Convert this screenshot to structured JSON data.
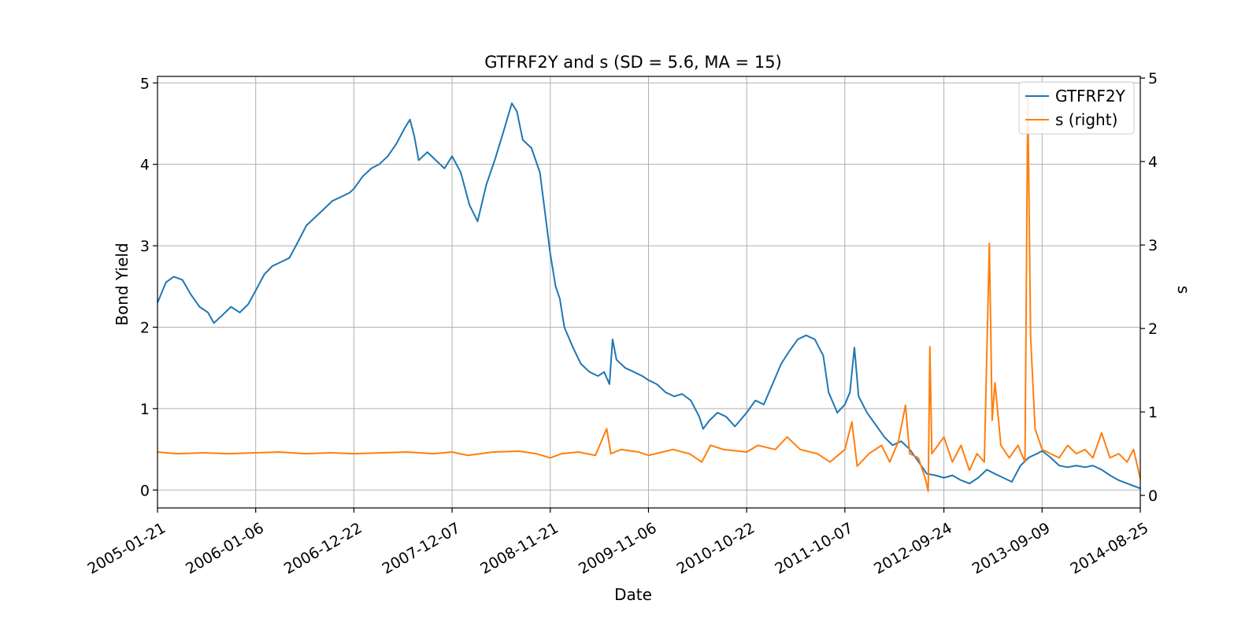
{
  "chart_data": {
    "type": "line",
    "title": "GTFRF2Y and s (SD = 5.6, MA = 15)",
    "xlabel": "Date",
    "ylabel": "Bond Yield",
    "ylabel_right": "s",
    "x_ticks": [
      "2005-01-21",
      "2006-01-06",
      "2006-12-22",
      "2007-12-07",
      "2008-11-21",
      "2009-11-06",
      "2010-10-22",
      "2011-10-07",
      "2012-09-24",
      "2013-09-09",
      "2014-08-25"
    ],
    "xlim": [
      "2005-01-21",
      "2014-08-25"
    ],
    "ylim_left": [
      -0.22,
      5.08
    ],
    "ylim_right": [
      -0.15,
      5.02
    ],
    "yticks_left": [
      0,
      1,
      2,
      3,
      4,
      5
    ],
    "yticks_right": [
      0,
      1,
      2,
      3,
      4,
      5
    ],
    "grid": true,
    "legend_position": "top-right",
    "colors": {
      "GTFRF2Y": "#1f77b4",
      "s": "#ff7f0e",
      "grid": "#b0b0b0"
    },
    "series": [
      {
        "name": "GTFRF2Y",
        "axis": "left",
        "points": [
          [
            "2005-01-21",
            2.3
          ],
          [
            "2005-02-20",
            2.55
          ],
          [
            "2005-03-20",
            2.62
          ],
          [
            "2005-04-20",
            2.58
          ],
          [
            "2005-05-20",
            2.4
          ],
          [
            "2005-06-20",
            2.25
          ],
          [
            "2005-07-20",
            2.18
          ],
          [
            "2005-08-10",
            2.05
          ],
          [
            "2005-09-10",
            2.15
          ],
          [
            "2005-10-10",
            2.25
          ],
          [
            "2005-11-10",
            2.18
          ],
          [
            "2005-12-10",
            2.28
          ],
          [
            "2006-01-06",
            2.45
          ],
          [
            "2006-02-06",
            2.65
          ],
          [
            "2006-03-06",
            2.75
          ],
          [
            "2006-04-06",
            2.8
          ],
          [
            "2006-05-06",
            2.85
          ],
          [
            "2006-06-06",
            3.05
          ],
          [
            "2006-07-06",
            3.25
          ],
          [
            "2006-08-06",
            3.35
          ],
          [
            "2006-09-06",
            3.45
          ],
          [
            "2006-10-06",
            3.55
          ],
          [
            "2006-11-06",
            3.6
          ],
          [
            "2006-12-06",
            3.65
          ],
          [
            "2006-12-22",
            3.7
          ],
          [
            "2007-01-22",
            3.85
          ],
          [
            "2007-02-22",
            3.95
          ],
          [
            "2007-03-22",
            4.0
          ],
          [
            "2007-04-22",
            4.1
          ],
          [
            "2007-05-22",
            4.25
          ],
          [
            "2007-06-22",
            4.45
          ],
          [
            "2007-07-10",
            4.55
          ],
          [
            "2007-07-25",
            4.35
          ],
          [
            "2007-08-10",
            4.05
          ],
          [
            "2007-09-10",
            4.15
          ],
          [
            "2007-10-10",
            4.05
          ],
          [
            "2007-11-10",
            3.95
          ],
          [
            "2007-12-07",
            4.1
          ],
          [
            "2008-01-07",
            3.9
          ],
          [
            "2008-02-07",
            3.5
          ],
          [
            "2008-03-07",
            3.3
          ],
          [
            "2008-04-07",
            3.75
          ],
          [
            "2008-05-07",
            4.05
          ],
          [
            "2008-06-07",
            4.4
          ],
          [
            "2008-07-07",
            4.75
          ],
          [
            "2008-07-25",
            4.65
          ],
          [
            "2008-08-15",
            4.3
          ],
          [
            "2008-09-15",
            4.2
          ],
          [
            "2008-10-15",
            3.9
          ],
          [
            "2008-11-21",
            2.9
          ],
          [
            "2008-12-10",
            2.5
          ],
          [
            "2008-12-25",
            2.35
          ],
          [
            "2009-01-10",
            2.0
          ],
          [
            "2009-02-10",
            1.75
          ],
          [
            "2009-03-10",
            1.55
          ],
          [
            "2009-04-10",
            1.45
          ],
          [
            "2009-05-10",
            1.4
          ],
          [
            "2009-06-01",
            1.45
          ],
          [
            "2009-06-20",
            1.3
          ],
          [
            "2009-07-01",
            1.85
          ],
          [
            "2009-07-15",
            1.6
          ],
          [
            "2009-08-15",
            1.5
          ],
          [
            "2009-09-15",
            1.45
          ],
          [
            "2009-10-15",
            1.4
          ],
          [
            "2009-11-06",
            1.35
          ],
          [
            "2009-12-06",
            1.3
          ],
          [
            "2010-01-06",
            1.2
          ],
          [
            "2010-02-06",
            1.15
          ],
          [
            "2010-03-06",
            1.18
          ],
          [
            "2010-04-06",
            1.1
          ],
          [
            "2010-05-06",
            0.9
          ],
          [
            "2010-05-20",
            0.75
          ],
          [
            "2010-06-10",
            0.85
          ],
          [
            "2010-07-10",
            0.95
          ],
          [
            "2010-08-10",
            0.9
          ],
          [
            "2010-09-10",
            0.78
          ],
          [
            "2010-10-22",
            0.95
          ],
          [
            "2010-11-22",
            1.1
          ],
          [
            "2010-12-22",
            1.05
          ],
          [
            "2011-01-22",
            1.3
          ],
          [
            "2011-02-22",
            1.55
          ],
          [
            "2011-03-22",
            1.7
          ],
          [
            "2011-04-22",
            1.85
          ],
          [
            "2011-05-22",
            1.9
          ],
          [
            "2011-06-22",
            1.85
          ],
          [
            "2011-07-22",
            1.65
          ],
          [
            "2011-08-10",
            1.2
          ],
          [
            "2011-09-10",
            0.95
          ],
          [
            "2011-10-07",
            1.05
          ],
          [
            "2011-10-25",
            1.2
          ],
          [
            "2011-11-10",
            1.75
          ],
          [
            "2011-11-25",
            1.15
          ],
          [
            "2011-12-25",
            0.95
          ],
          [
            "2012-01-25",
            0.8
          ],
          [
            "2012-02-25",
            0.65
          ],
          [
            "2012-03-25",
            0.55
          ],
          [
            "2012-04-25",
            0.6
          ],
          [
            "2012-05-25",
            0.5
          ],
          [
            "2012-06-25",
            0.35
          ],
          [
            "2012-07-25",
            0.2
          ],
          [
            "2012-08-25",
            0.18
          ],
          [
            "2012-09-24",
            0.15
          ],
          [
            "2012-10-24",
            0.18
          ],
          [
            "2012-11-24",
            0.12
          ],
          [
            "2012-12-24",
            0.08
          ],
          [
            "2013-01-24",
            0.15
          ],
          [
            "2013-02-24",
            0.25
          ],
          [
            "2013-03-24",
            0.2
          ],
          [
            "2013-04-24",
            0.15
          ],
          [
            "2013-05-24",
            0.1
          ],
          [
            "2013-06-24",
            0.3
          ],
          [
            "2013-07-24",
            0.4
          ],
          [
            "2013-08-24",
            0.45
          ],
          [
            "2013-09-09",
            0.48
          ],
          [
            "2013-10-09",
            0.4
          ],
          [
            "2013-11-09",
            0.3
          ],
          [
            "2013-12-09",
            0.28
          ],
          [
            "2014-01-09",
            0.3
          ],
          [
            "2014-02-09",
            0.28
          ],
          [
            "2014-03-09",
            0.3
          ],
          [
            "2014-04-09",
            0.25
          ],
          [
            "2014-05-09",
            0.18
          ],
          [
            "2014-06-09",
            0.12
          ],
          [
            "2014-07-09",
            0.08
          ],
          [
            "2014-08-25",
            0.02
          ]
        ]
      },
      {
        "name": "s (right)",
        "axis": "right",
        "points": [
          [
            "2005-01-21",
            0.52
          ],
          [
            "2005-04-01",
            0.5
          ],
          [
            "2005-07-01",
            0.51
          ],
          [
            "2005-10-01",
            0.5
          ],
          [
            "2006-01-06",
            0.51
          ],
          [
            "2006-04-01",
            0.52
          ],
          [
            "2006-07-01",
            0.5
          ],
          [
            "2006-10-01",
            0.51
          ],
          [
            "2006-12-22",
            0.5
          ],
          [
            "2007-04-01",
            0.51
          ],
          [
            "2007-07-01",
            0.52
          ],
          [
            "2007-10-01",
            0.5
          ],
          [
            "2007-12-07",
            0.52
          ],
          [
            "2008-02-01",
            0.48
          ],
          [
            "2008-05-01",
            0.52
          ],
          [
            "2008-08-01",
            0.53
          ],
          [
            "2008-10-01",
            0.5
          ],
          [
            "2008-11-21",
            0.45
          ],
          [
            "2009-01-01",
            0.5
          ],
          [
            "2009-03-01",
            0.52
          ],
          [
            "2009-05-01",
            0.48
          ],
          [
            "2009-06-10",
            0.8
          ],
          [
            "2009-06-25",
            0.5
          ],
          [
            "2009-08-01",
            0.55
          ],
          [
            "2009-10-01",
            0.52
          ],
          [
            "2009-11-06",
            0.48
          ],
          [
            "2010-02-01",
            0.55
          ],
          [
            "2010-04-01",
            0.5
          ],
          [
            "2010-05-15",
            0.4
          ],
          [
            "2010-06-15",
            0.6
          ],
          [
            "2010-08-01",
            0.55
          ],
          [
            "2010-10-22",
            0.52
          ],
          [
            "2010-12-01",
            0.6
          ],
          [
            "2011-02-01",
            0.55
          ],
          [
            "2011-03-15",
            0.7
          ],
          [
            "2011-05-01",
            0.55
          ],
          [
            "2011-07-01",
            0.5
          ],
          [
            "2011-08-15",
            0.4
          ],
          [
            "2011-10-07",
            0.55
          ],
          [
            "2011-11-01",
            0.88
          ],
          [
            "2011-11-20",
            0.35
          ],
          [
            "2012-01-01",
            0.5
          ],
          [
            "2012-02-15",
            0.6
          ],
          [
            "2012-03-15",
            0.4
          ],
          [
            "2012-04-15",
            0.65
          ],
          [
            "2012-05-10",
            1.08
          ],
          [
            "2012-05-25",
            0.5
          ],
          [
            "2012-06-25",
            0.45
          ],
          [
            "2012-07-20",
            0.2
          ],
          [
            "2012-07-30",
            0.05
          ],
          [
            "2012-08-05",
            1.78
          ],
          [
            "2012-08-12",
            0.5
          ],
          [
            "2012-09-24",
            0.7
          ],
          [
            "2012-10-24",
            0.4
          ],
          [
            "2012-11-24",
            0.6
          ],
          [
            "2012-12-24",
            0.3
          ],
          [
            "2013-01-20",
            0.5
          ],
          [
            "2013-02-15",
            0.4
          ],
          [
            "2013-03-05",
            3.02
          ],
          [
            "2013-03-15",
            0.9
          ],
          [
            "2013-03-25",
            1.35
          ],
          [
            "2013-04-15",
            0.6
          ],
          [
            "2013-05-15",
            0.45
          ],
          [
            "2013-06-15",
            0.6
          ],
          [
            "2013-07-10",
            0.4
          ],
          [
            "2013-07-20",
            4.8
          ],
          [
            "2013-07-30",
            1.9
          ],
          [
            "2013-08-15",
            0.8
          ],
          [
            "2013-09-09",
            0.55
          ],
          [
            "2013-10-09",
            0.5
          ],
          [
            "2013-11-09",
            0.45
          ],
          [
            "2013-12-09",
            0.6
          ],
          [
            "2014-01-09",
            0.5
          ],
          [
            "2014-02-09",
            0.55
          ],
          [
            "2014-03-09",
            0.45
          ],
          [
            "2014-04-09",
            0.75
          ],
          [
            "2014-05-09",
            0.45
          ],
          [
            "2014-06-09",
            0.5
          ],
          [
            "2014-07-09",
            0.4
          ],
          [
            "2014-08-01",
            0.55
          ],
          [
            "2014-08-25",
            0.2
          ]
        ]
      }
    ]
  }
}
